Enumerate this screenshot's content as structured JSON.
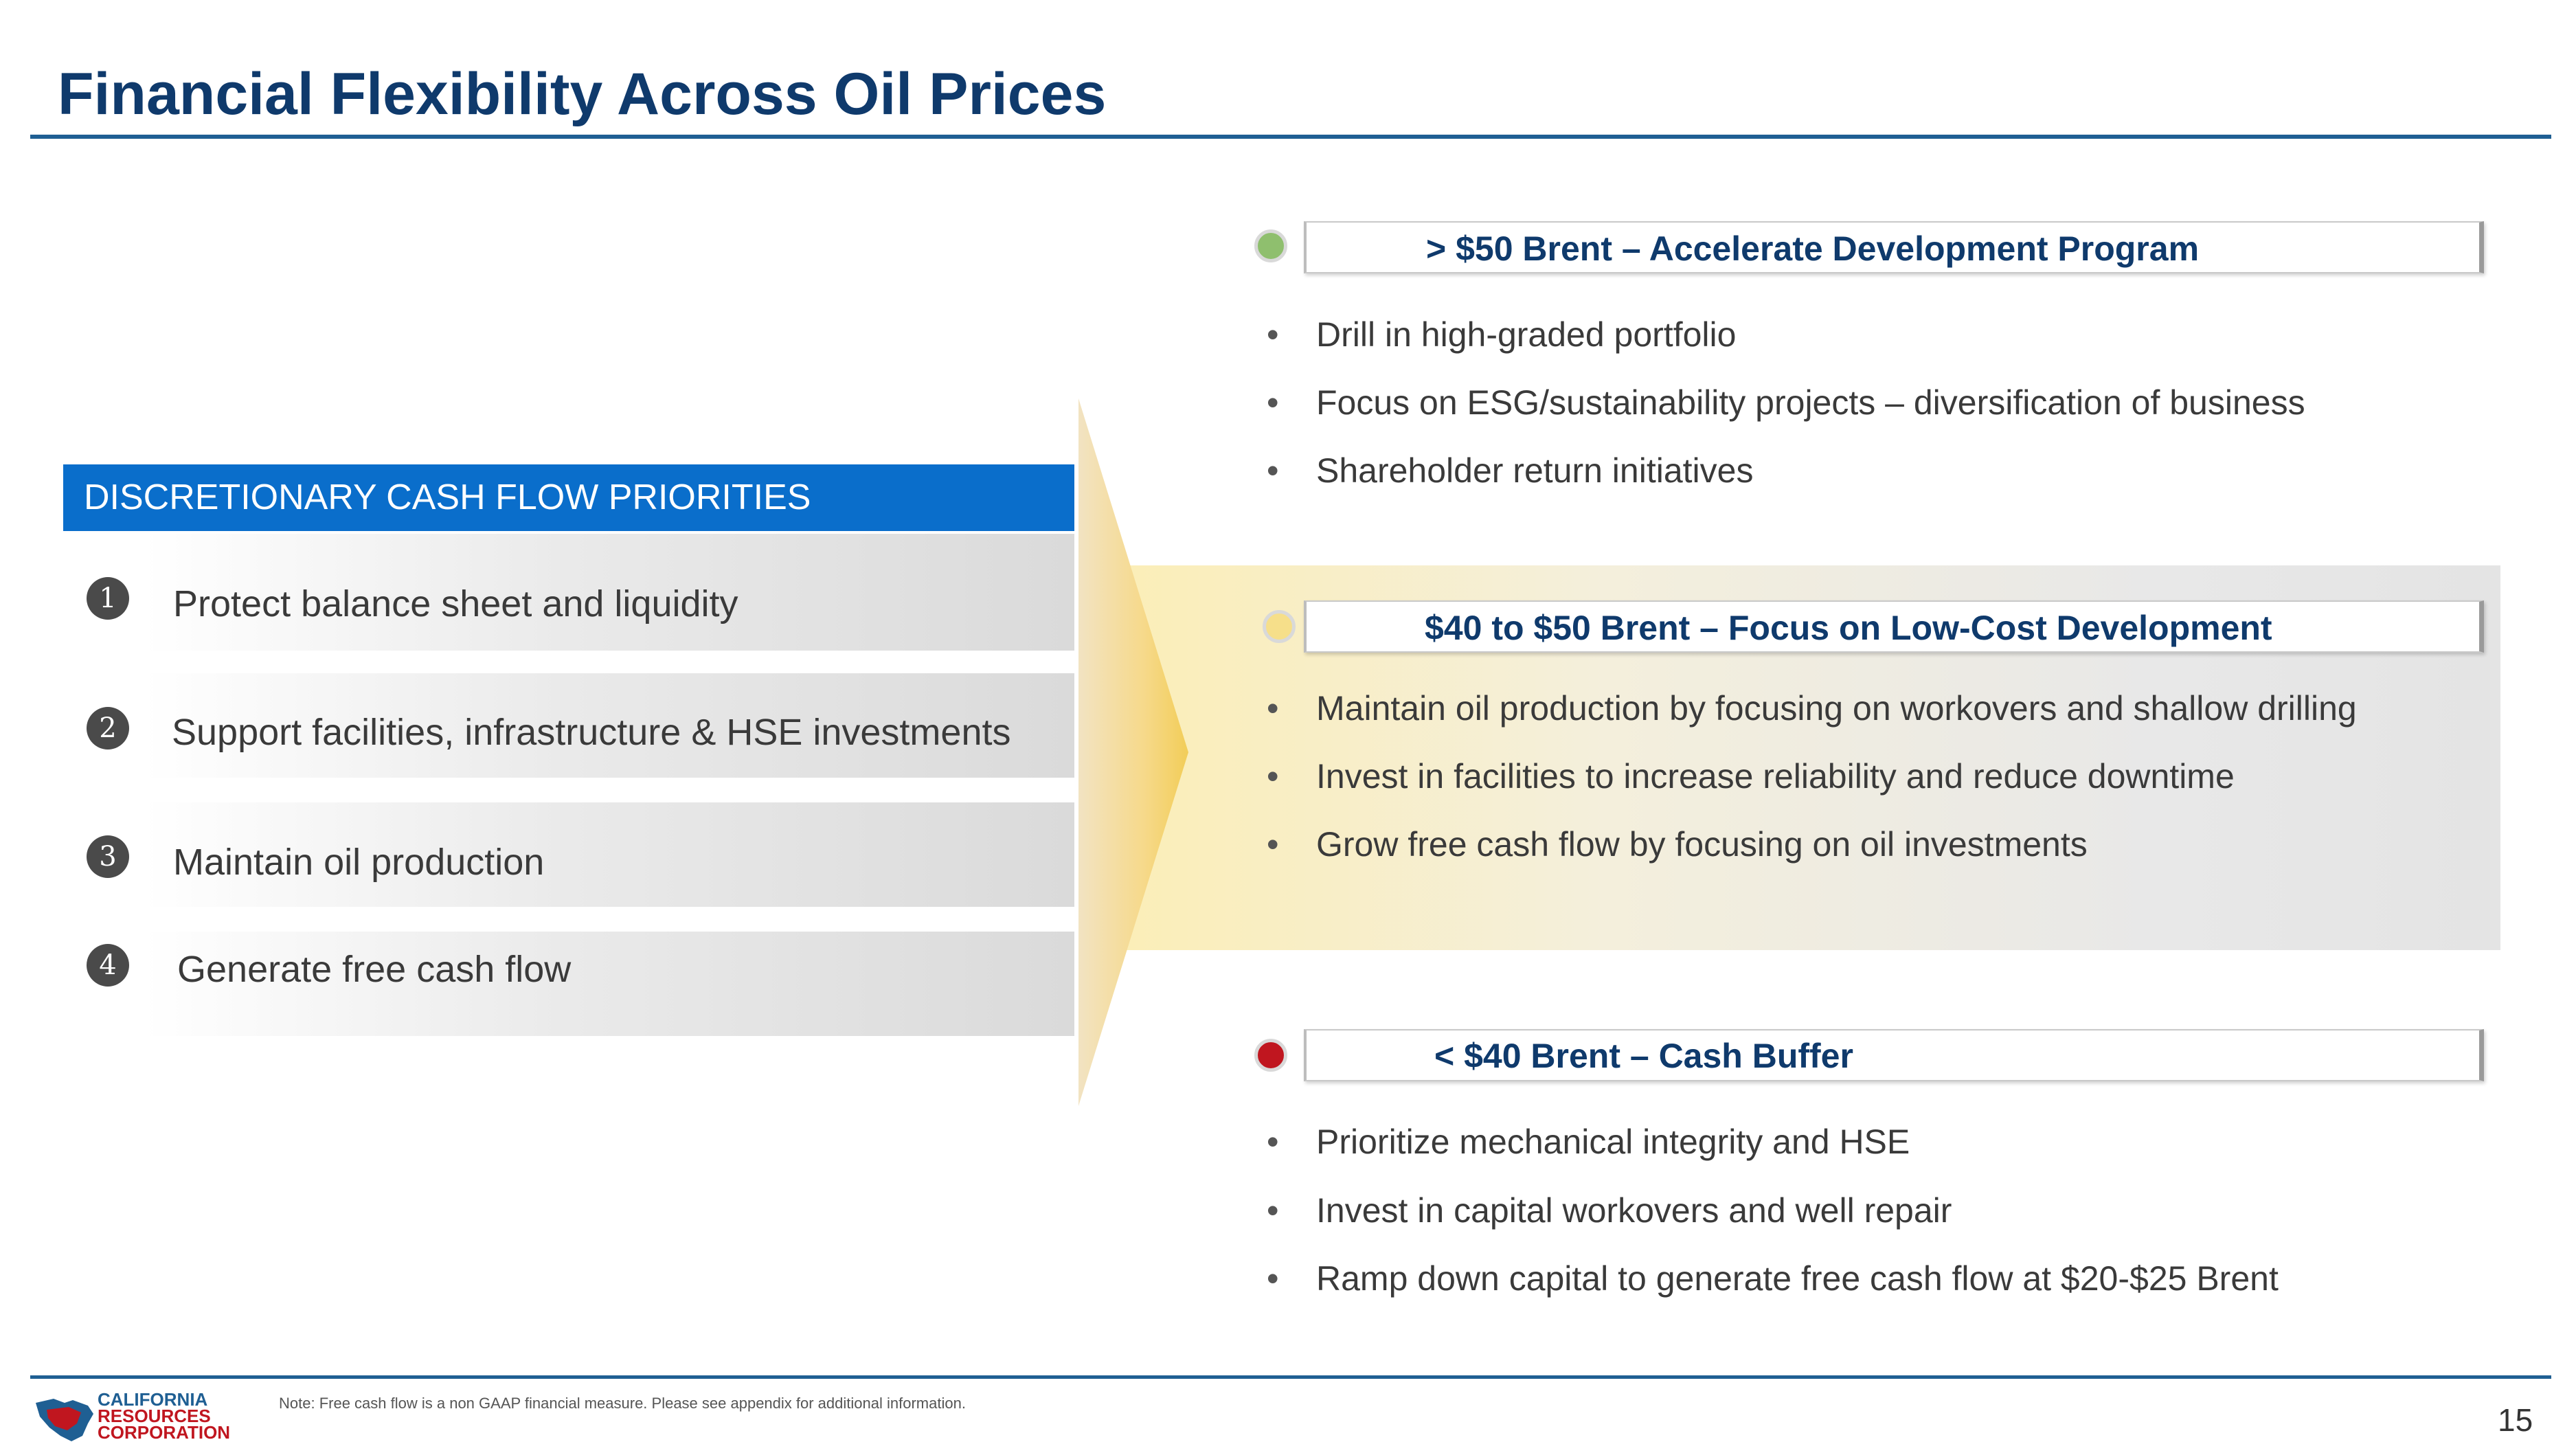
{
  "title": "Financial Flexibility Across Oil Prices",
  "priorities": {
    "header": "DISCRETIONARY CASH FLOW PRIORITIES",
    "items": [
      {
        "num": "1",
        "label": "Protect balance sheet and liquidity"
      },
      {
        "num": "2",
        "label": "Support facilities, infrastructure & HSE investments"
      },
      {
        "num": "3",
        "label": "Maintain oil production"
      },
      {
        "num": "4",
        "label": "Generate free cash flow"
      }
    ]
  },
  "scenarios": [
    {
      "title": "> $50 Brent – Accelerate Development Program",
      "dot_color": "#8fbf6e",
      "bullets": [
        "Drill in high-graded portfolio",
        "Focus on ESG/sustainability projects – diversification of business",
        "Shareholder return initiatives"
      ]
    },
    {
      "title": "$40 to $50 Brent – Focus on Low-Cost Development",
      "dot_color": "#f6df8a",
      "bullets": [
        "Maintain oil production by focusing on workovers and shallow drilling",
        "Invest in facilities to increase reliability and reduce downtime",
        "Grow free cash flow by focusing on oil investments"
      ]
    },
    {
      "title": "< $40 Brent – Cash Buffer",
      "dot_color": "#c0161f",
      "bullets": [
        "Prioritize mechanical integrity and HSE",
        "Invest in capital workovers and well repair",
        "Ramp down capital to generate free cash flow at $20-$25 Brent"
      ]
    }
  ],
  "footer": {
    "logo_lines": [
      "CALIFORNIA",
      "RESOURCES",
      "CORPORATION"
    ],
    "note": "Note: Free cash flow is a non GAAP financial measure. Please see appendix for additional information.",
    "page": "15"
  },
  "colors": {
    "title": "#0f3a6c",
    "header_blue": "#0a6ecb",
    "rule": "#1f5f93",
    "logo_blue": "#1f5f93",
    "logo_red": "#c0161f"
  }
}
